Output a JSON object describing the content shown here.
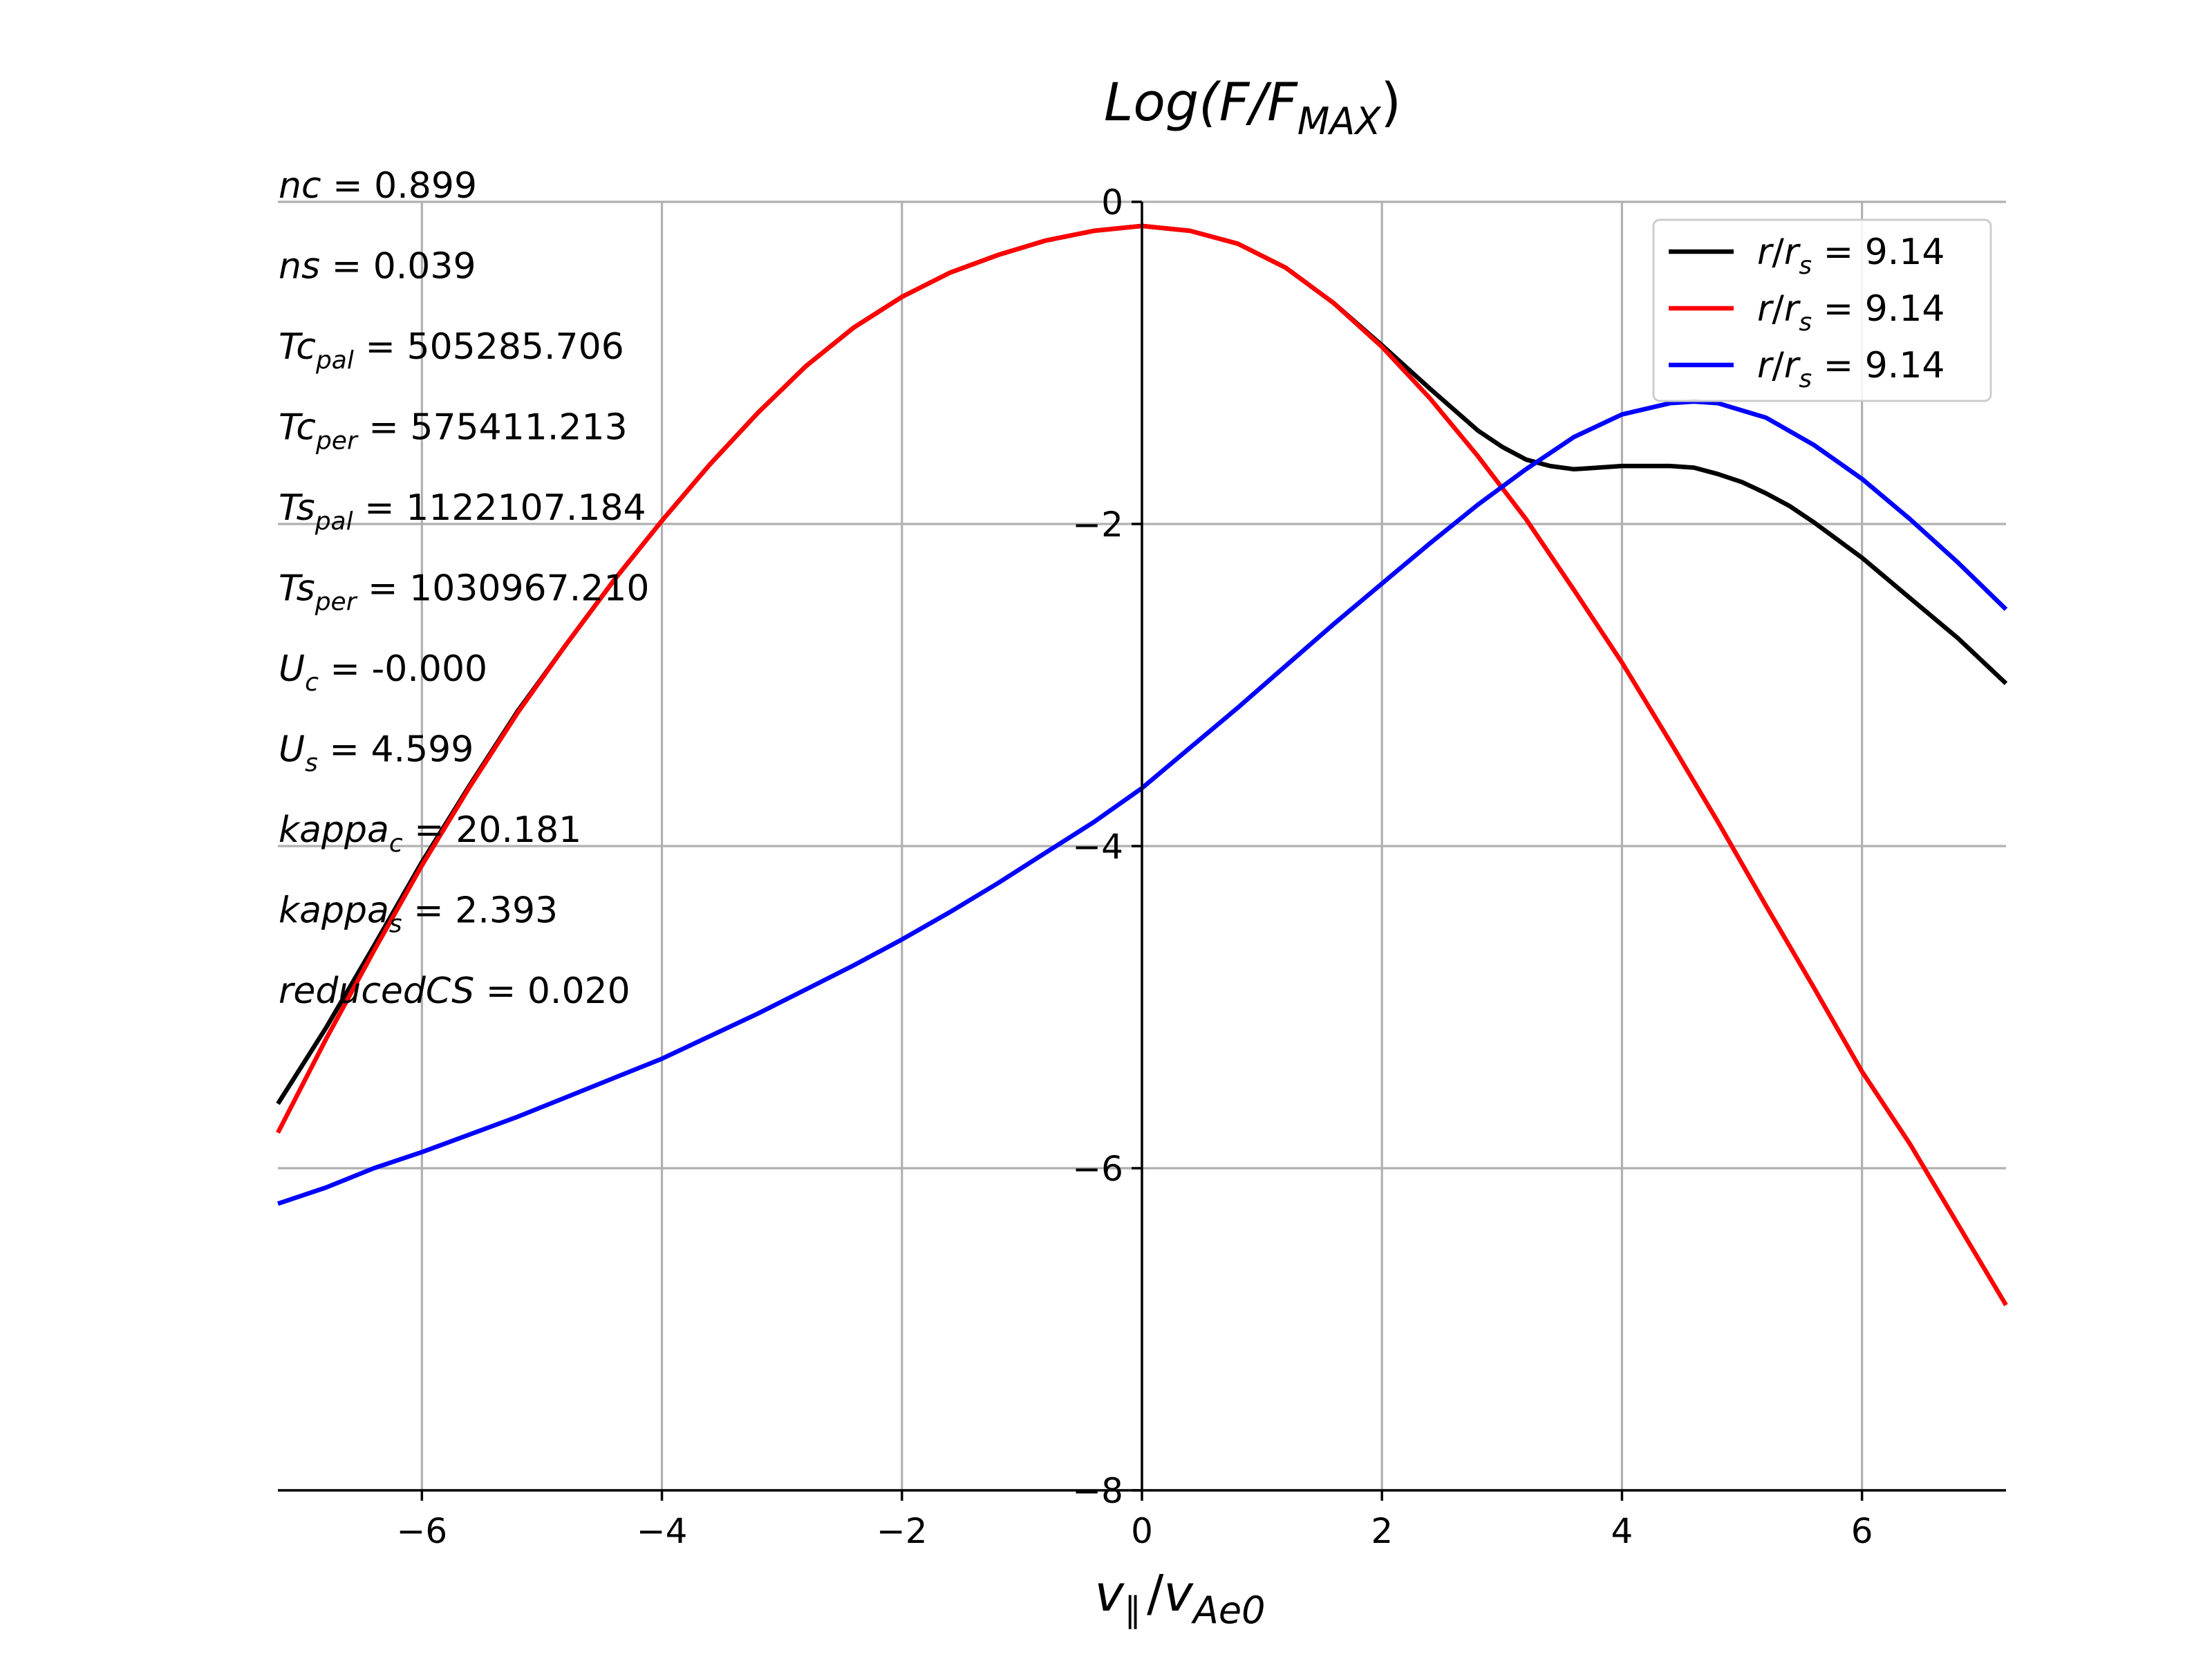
{
  "chart_data": {
    "type": "line",
    "title": "Log(F/F_MAX)",
    "title_parts": {
      "main": "Log(F/F",
      "sub": "MAX",
      "close": ")"
    },
    "xlabel": "v_∥ / v_Ae0",
    "xlabel_parts": {
      "a": "v",
      "a_sub": "∥",
      "slash": "/",
      "b": "v",
      "b_sub": "Ae0"
    },
    "xlim": [
      -7.2,
      7.2
    ],
    "ylim": [
      -8,
      0
    ],
    "xticks": [
      -6,
      -4,
      -2,
      0,
      2,
      4,
      6
    ],
    "xtick_labels": [
      "−6",
      "−4",
      "−2",
      "0",
      "2",
      "4",
      "6"
    ],
    "yticks": [
      0,
      -2,
      -4,
      -6,
      -8
    ],
    "ytick_labels": [
      "0",
      "−2",
      "−4",
      "−6",
      "−8"
    ],
    "grid": true,
    "legend_position": "top-right",
    "series": [
      {
        "name": "r/r_s = 9.14",
        "legend_parts": {
          "a": "r",
          "slash": "/",
          "b": "r",
          "b_sub": "s",
          "eq": " = 9.14"
        },
        "color": "#000000",
        "x": [
          -7.2,
          -6.8,
          -6.4,
          -6.0,
          -5.6,
          -5.2,
          -4.8,
          -4.4,
          -4.0,
          -3.6,
          -3.2,
          -2.8,
          -2.4,
          -2.0,
          -1.6,
          -1.2,
          -0.8,
          -0.4,
          0.0,
          0.4,
          0.8,
          1.2,
          1.6,
          2.0,
          2.4,
          2.8,
          3.0,
          3.2,
          3.4,
          3.6,
          3.8,
          4.0,
          4.2,
          4.4,
          4.6,
          4.8,
          5.0,
          5.2,
          5.4,
          5.6,
          6.0,
          6.4,
          6.8,
          7.2
        ],
        "y": [
          -5.6,
          -5.13,
          -4.62,
          -4.1,
          -3.62,
          -3.16,
          -2.75,
          -2.35,
          -1.98,
          -1.63,
          -1.31,
          -1.02,
          -0.78,
          -0.59,
          -0.44,
          -0.33,
          -0.24,
          -0.18,
          -0.15,
          -0.18,
          -0.26,
          -0.41,
          -0.63,
          -0.89,
          -1.16,
          -1.42,
          -1.52,
          -1.6,
          -1.64,
          -1.66,
          -1.65,
          -1.64,
          -1.64,
          -1.64,
          -1.65,
          -1.69,
          -1.74,
          -1.81,
          -1.89,
          -1.99,
          -2.21,
          -2.46,
          -2.71,
          -2.99
        ]
      },
      {
        "name": "r/r_s = 9.14",
        "legend_parts": {
          "a": "r",
          "slash": "/",
          "b": "r",
          "b_sub": "s",
          "eq": " = 9.14"
        },
        "color": "#ff0000",
        "x": [
          -7.2,
          -6.8,
          -6.4,
          -6.0,
          -5.6,
          -5.2,
          -4.8,
          -4.4,
          -4.0,
          -3.6,
          -3.2,
          -2.8,
          -2.4,
          -2.0,
          -1.6,
          -1.2,
          -0.8,
          -0.4,
          0.0,
          0.4,
          0.8,
          1.2,
          1.6,
          2.0,
          2.4,
          2.8,
          3.2,
          3.6,
          4.0,
          4.4,
          4.8,
          5.2,
          5.6,
          6.0,
          6.4,
          6.8,
          7.2
        ],
        "y": [
          -5.78,
          -5.2,
          -4.65,
          -4.12,
          -3.63,
          -3.17,
          -2.75,
          -2.35,
          -1.98,
          -1.63,
          -1.31,
          -1.02,
          -0.78,
          -0.59,
          -0.44,
          -0.33,
          -0.24,
          -0.18,
          -0.15,
          -0.18,
          -0.26,
          -0.41,
          -0.63,
          -0.9,
          -1.22,
          -1.58,
          -1.97,
          -2.41,
          -2.86,
          -3.35,
          -3.85,
          -4.37,
          -4.88,
          -5.4,
          -5.85,
          -6.35,
          -6.85
        ]
      },
      {
        "name": "r/r_s = 9.14",
        "legend_parts": {
          "a": "r",
          "slash": "/",
          "b": "r",
          "b_sub": "s",
          "eq": " = 9.14"
        },
        "color": "#0000ff",
        "x": [
          -7.2,
          -6.8,
          -6.4,
          -6.0,
          -5.6,
          -5.2,
          -4.8,
          -4.4,
          -4.0,
          -3.6,
          -3.2,
          -2.8,
          -2.4,
          -2.0,
          -1.6,
          -1.2,
          -0.8,
          -0.4,
          0.0,
          0.4,
          0.8,
          1.2,
          1.6,
          2.0,
          2.4,
          2.8,
          3.2,
          3.6,
          4.0,
          4.4,
          4.6,
          4.8,
          5.2,
          5.6,
          6.0,
          6.4,
          6.8,
          7.2
        ],
        "y": [
          -6.22,
          -6.12,
          -6.0,
          -5.9,
          -5.79,
          -5.68,
          -5.56,
          -5.44,
          -5.32,
          -5.18,
          -5.04,
          -4.89,
          -4.74,
          -4.58,
          -4.41,
          -4.23,
          -4.04,
          -3.85,
          -3.64,
          -3.39,
          -3.14,
          -2.88,
          -2.62,
          -2.37,
          -2.12,
          -1.88,
          -1.66,
          -1.46,
          -1.32,
          -1.25,
          -1.24,
          -1.25,
          -1.34,
          -1.51,
          -1.72,
          -1.97,
          -2.24,
          -2.53
        ]
      }
    ],
    "annotations": [
      {
        "base": "nc",
        "sub": "",
        "value": "0.899"
      },
      {
        "base": "ns",
        "sub": "",
        "value": "0.039"
      },
      {
        "base": "Tc",
        "sub": "pal",
        "value": "505285.706"
      },
      {
        "base": "Tc",
        "sub": "per",
        "value": "575411.213"
      },
      {
        "base": "Ts",
        "sub": "pal",
        "value": "1122107.184"
      },
      {
        "base": "Ts",
        "sub": "per",
        "value": "1030967.210"
      },
      {
        "base": "U",
        "sub": "c",
        "value": "-0.000"
      },
      {
        "base": "U",
        "sub": "s",
        "value": "4.599"
      },
      {
        "base": "kappa",
        "sub": "c",
        "value": "20.181"
      },
      {
        "base": "kappa",
        "sub": "s",
        "value": "2.393"
      },
      {
        "base": "reducedCS",
        "sub": "",
        "value": "0.020"
      }
    ]
  }
}
